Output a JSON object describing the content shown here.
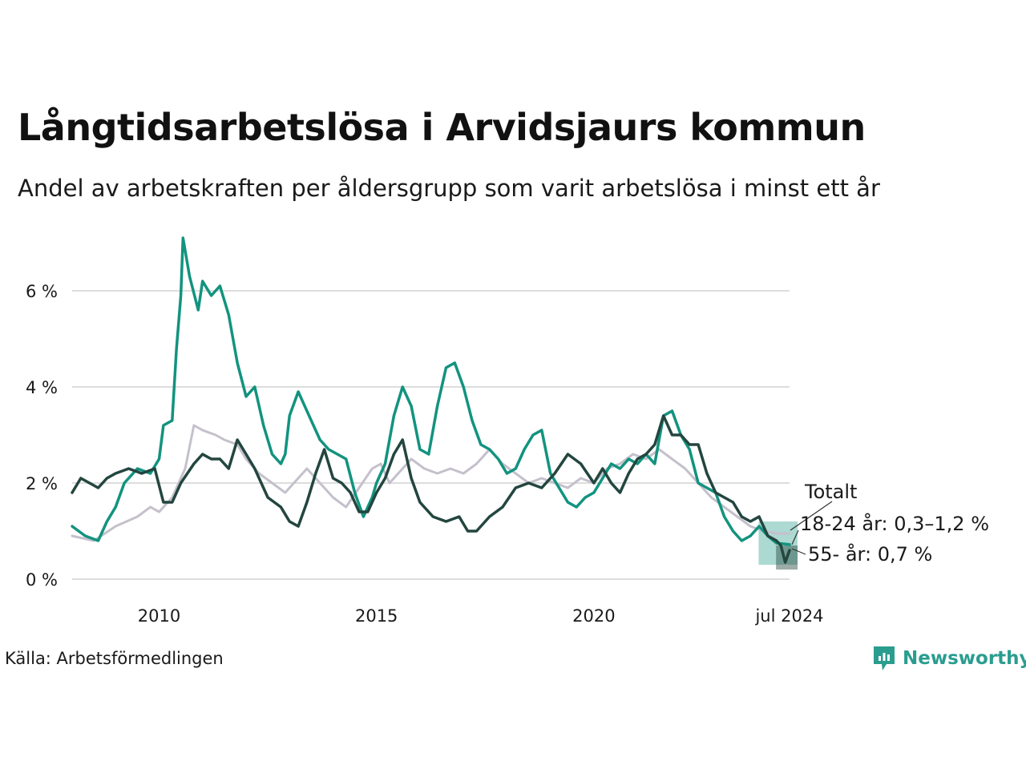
{
  "title": "Långtidsarbetslösa i Arvidsjaurs kommun",
  "subtitle": "Andel av arbetskraften per åldersgrupp som varit arbetslösa i minst ett år",
  "source": "Källa: Arbetsförmedlingen",
  "brand": "Newsworthy",
  "colors": {
    "total": "#c5c0cc",
    "youth": "#12937f",
    "older": "#23463f",
    "grid": "#dddddd",
    "brand": "#2a9d8f"
  },
  "chart_data": {
    "type": "line",
    "title": "Långtidsarbetslösa i Arvidsjaurs kommun",
    "subtitle": "Andel av arbetskraften per åldersgrupp som varit arbetslösa i minst ett år",
    "xlabel": "",
    "ylabel": "",
    "x_range": [
      2008.0,
      2024.5
    ],
    "ylim": [
      0,
      7.2
    ],
    "y_ticks": [
      0,
      2,
      4,
      6
    ],
    "y_tick_labels": [
      "0 %",
      "2 %",
      "4 %",
      "6 %"
    ],
    "x_ticks": [
      2010,
      2015,
      2020,
      2024.5
    ],
    "x_tick_labels": [
      "2010",
      "2015",
      "2020",
      "jul 2024"
    ],
    "grid": true,
    "series": [
      {
        "name": "Totalt",
        "label": "Totalt",
        "points": [
          [
            2008.0,
            0.9
          ],
          [
            2008.5,
            0.8
          ],
          [
            2009.0,
            1.1
          ],
          [
            2009.5,
            1.3
          ],
          [
            2009.8,
            1.5
          ],
          [
            2010.0,
            1.4
          ],
          [
            2010.3,
            1.7
          ],
          [
            2010.6,
            2.3
          ],
          [
            2010.8,
            3.2
          ],
          [
            2011.0,
            3.1
          ],
          [
            2011.3,
            3.0
          ],
          [
            2011.5,
            2.9
          ],
          [
            2011.8,
            2.8
          ],
          [
            2012.0,
            2.5
          ],
          [
            2012.3,
            2.2
          ],
          [
            2012.6,
            2.0
          ],
          [
            2012.9,
            1.8
          ],
          [
            2013.1,
            2.0
          ],
          [
            2013.4,
            2.3
          ],
          [
            2013.7,
            2.0
          ],
          [
            2014.0,
            1.7
          ],
          [
            2014.3,
            1.5
          ],
          [
            2014.6,
            1.9
          ],
          [
            2014.9,
            2.3
          ],
          [
            2015.1,
            2.4
          ],
          [
            2015.3,
            2.0
          ],
          [
            2015.6,
            2.3
          ],
          [
            2015.8,
            2.5
          ],
          [
            2016.1,
            2.3
          ],
          [
            2016.4,
            2.2
          ],
          [
            2016.7,
            2.3
          ],
          [
            2017.0,
            2.2
          ],
          [
            2017.3,
            2.4
          ],
          [
            2017.6,
            2.7
          ],
          [
            2017.9,
            2.4
          ],
          [
            2018.2,
            2.2
          ],
          [
            2018.5,
            2.0
          ],
          [
            2018.8,
            2.1
          ],
          [
            2019.1,
            2.0
          ],
          [
            2019.4,
            1.9
          ],
          [
            2019.7,
            2.1
          ],
          [
            2020.0,
            2.0
          ],
          [
            2020.3,
            2.3
          ],
          [
            2020.6,
            2.4
          ],
          [
            2020.9,
            2.6
          ],
          [
            2021.2,
            2.5
          ],
          [
            2021.5,
            2.7
          ],
          [
            2021.8,
            2.5
          ],
          [
            2022.1,
            2.3
          ],
          [
            2022.4,
            2.0
          ],
          [
            2022.7,
            1.7
          ],
          [
            2023.0,
            1.5
          ],
          [
            2023.3,
            1.3
          ],
          [
            2023.6,
            1.1
          ],
          [
            2023.9,
            1.0
          ],
          [
            2024.2,
            0.95
          ],
          [
            2024.5,
            0.95
          ]
        ]
      },
      {
        "name": "18-24 år",
        "label": "18-24 år: 0,3–1,2 %",
        "points": [
          [
            2008.0,
            1.1
          ],
          [
            2008.3,
            0.9
          ],
          [
            2008.6,
            0.8
          ],
          [
            2008.8,
            1.2
          ],
          [
            2009.0,
            1.5
          ],
          [
            2009.2,
            2.0
          ],
          [
            2009.5,
            2.3
          ],
          [
            2009.8,
            2.2
          ],
          [
            2010.0,
            2.5
          ],
          [
            2010.1,
            3.2
          ],
          [
            2010.3,
            3.3
          ],
          [
            2010.4,
            4.8
          ],
          [
            2010.5,
            5.9
          ],
          [
            2010.55,
            7.1
          ],
          [
            2010.7,
            6.3
          ],
          [
            2010.9,
            5.6
          ],
          [
            2011.0,
            6.2
          ],
          [
            2011.2,
            5.9
          ],
          [
            2011.4,
            6.1
          ],
          [
            2011.6,
            5.5
          ],
          [
            2011.8,
            4.5
          ],
          [
            2012.0,
            3.8
          ],
          [
            2012.2,
            4.0
          ],
          [
            2012.4,
            3.2
          ],
          [
            2012.6,
            2.6
          ],
          [
            2012.8,
            2.4
          ],
          [
            2012.9,
            2.6
          ],
          [
            2013.0,
            3.4
          ],
          [
            2013.2,
            3.9
          ],
          [
            2013.5,
            3.3
          ],
          [
            2013.7,
            2.9
          ],
          [
            2013.9,
            2.7
          ],
          [
            2014.1,
            2.6
          ],
          [
            2014.3,
            2.5
          ],
          [
            2014.5,
            1.8
          ],
          [
            2014.7,
            1.3
          ],
          [
            2014.9,
            1.7
          ],
          [
            2015.0,
            2.0
          ],
          [
            2015.2,
            2.4
          ],
          [
            2015.4,
            3.4
          ],
          [
            2015.6,
            4.0
          ],
          [
            2015.8,
            3.6
          ],
          [
            2016.0,
            2.7
          ],
          [
            2016.2,
            2.6
          ],
          [
            2016.4,
            3.6
          ],
          [
            2016.6,
            4.4
          ],
          [
            2016.8,
            4.5
          ],
          [
            2017.0,
            4.0
          ],
          [
            2017.2,
            3.3
          ],
          [
            2017.4,
            2.8
          ],
          [
            2017.6,
            2.7
          ],
          [
            2017.8,
            2.5
          ],
          [
            2018.0,
            2.2
          ],
          [
            2018.2,
            2.3
          ],
          [
            2018.4,
            2.7
          ],
          [
            2018.6,
            3.0
          ],
          [
            2018.8,
            3.1
          ],
          [
            2019.0,
            2.2
          ],
          [
            2019.2,
            1.9
          ],
          [
            2019.4,
            1.6
          ],
          [
            2019.6,
            1.5
          ],
          [
            2019.8,
            1.7
          ],
          [
            2020.0,
            1.8
          ],
          [
            2020.2,
            2.1
          ],
          [
            2020.4,
            2.4
          ],
          [
            2020.6,
            2.3
          ],
          [
            2020.8,
            2.5
          ],
          [
            2021.0,
            2.4
          ],
          [
            2021.2,
            2.6
          ],
          [
            2021.4,
            2.4
          ],
          [
            2021.6,
            3.4
          ],
          [
            2021.8,
            3.5
          ],
          [
            2022.0,
            3.0
          ],
          [
            2022.2,
            2.7
          ],
          [
            2022.4,
            2.0
          ],
          [
            2022.6,
            1.9
          ],
          [
            2022.8,
            1.8
          ],
          [
            2023.0,
            1.3
          ],
          [
            2023.2,
            1.0
          ],
          [
            2023.4,
            0.8
          ],
          [
            2023.6,
            0.9
          ],
          [
            2023.8,
            1.1
          ],
          [
            2024.0,
            0.9
          ],
          [
            2024.2,
            0.75
          ],
          [
            2024.5,
            0.72
          ]
        ]
      },
      {
        "name": "55- år",
        "label": "55- år: 0,7 %",
        "points": [
          [
            2008.0,
            1.8
          ],
          [
            2008.2,
            2.1
          ],
          [
            2008.4,
            2.0
          ],
          [
            2008.6,
            1.9
          ],
          [
            2008.8,
            2.1
          ],
          [
            2009.0,
            2.2
          ],
          [
            2009.3,
            2.3
          ],
          [
            2009.6,
            2.2
          ],
          [
            2009.9,
            2.3
          ],
          [
            2010.1,
            1.6
          ],
          [
            2010.3,
            1.6
          ],
          [
            2010.5,
            2.0
          ],
          [
            2010.8,
            2.4
          ],
          [
            2011.0,
            2.6
          ],
          [
            2011.2,
            2.5
          ],
          [
            2011.4,
            2.5
          ],
          [
            2011.6,
            2.3
          ],
          [
            2011.8,
            2.9
          ],
          [
            2012.0,
            2.6
          ],
          [
            2012.2,
            2.3
          ],
          [
            2012.5,
            1.7
          ],
          [
            2012.8,
            1.5
          ],
          [
            2013.0,
            1.2
          ],
          [
            2013.2,
            1.1
          ],
          [
            2013.4,
            1.6
          ],
          [
            2013.6,
            2.2
          ],
          [
            2013.8,
            2.7
          ],
          [
            2014.0,
            2.1
          ],
          [
            2014.2,
            2.0
          ],
          [
            2014.4,
            1.8
          ],
          [
            2014.6,
            1.4
          ],
          [
            2014.8,
            1.4
          ],
          [
            2015.0,
            1.8
          ],
          [
            2015.2,
            2.1
          ],
          [
            2015.4,
            2.6
          ],
          [
            2015.6,
            2.9
          ],
          [
            2015.8,
            2.1
          ],
          [
            2016.0,
            1.6
          ],
          [
            2016.3,
            1.3
          ],
          [
            2016.6,
            1.2
          ],
          [
            2016.9,
            1.3
          ],
          [
            2017.1,
            1.0
          ],
          [
            2017.3,
            1.0
          ],
          [
            2017.6,
            1.3
          ],
          [
            2017.9,
            1.5
          ],
          [
            2018.2,
            1.9
          ],
          [
            2018.5,
            2.0
          ],
          [
            2018.8,
            1.9
          ],
          [
            2019.1,
            2.2
          ],
          [
            2019.4,
            2.6
          ],
          [
            2019.7,
            2.4
          ],
          [
            2020.0,
            2.0
          ],
          [
            2020.2,
            2.3
          ],
          [
            2020.4,
            2.0
          ],
          [
            2020.6,
            1.8
          ],
          [
            2020.8,
            2.2
          ],
          [
            2021.0,
            2.5
          ],
          [
            2021.2,
            2.6
          ],
          [
            2021.4,
            2.8
          ],
          [
            2021.6,
            3.4
          ],
          [
            2021.8,
            3.0
          ],
          [
            2022.0,
            3.0
          ],
          [
            2022.2,
            2.8
          ],
          [
            2022.4,
            2.8
          ],
          [
            2022.6,
            2.2
          ],
          [
            2022.8,
            1.8
          ],
          [
            2023.0,
            1.7
          ],
          [
            2023.2,
            1.6
          ],
          [
            2023.4,
            1.3
          ],
          [
            2023.6,
            1.2
          ],
          [
            2023.8,
            1.3
          ],
          [
            2024.0,
            0.9
          ],
          [
            2024.2,
            0.8
          ],
          [
            2024.3,
            0.7
          ],
          [
            2024.4,
            0.35
          ],
          [
            2024.5,
            0.6
          ]
        ]
      }
    ],
    "ranges": [
      {
        "series": "18-24 år",
        "x": [
          2023.9,
          2024.5
        ],
        "y": [
          0.3,
          1.2
        ]
      },
      {
        "series": "55- år",
        "x": [
          2024.3,
          2024.5
        ],
        "y": [
          0.2,
          0.7
        ]
      }
    ]
  }
}
